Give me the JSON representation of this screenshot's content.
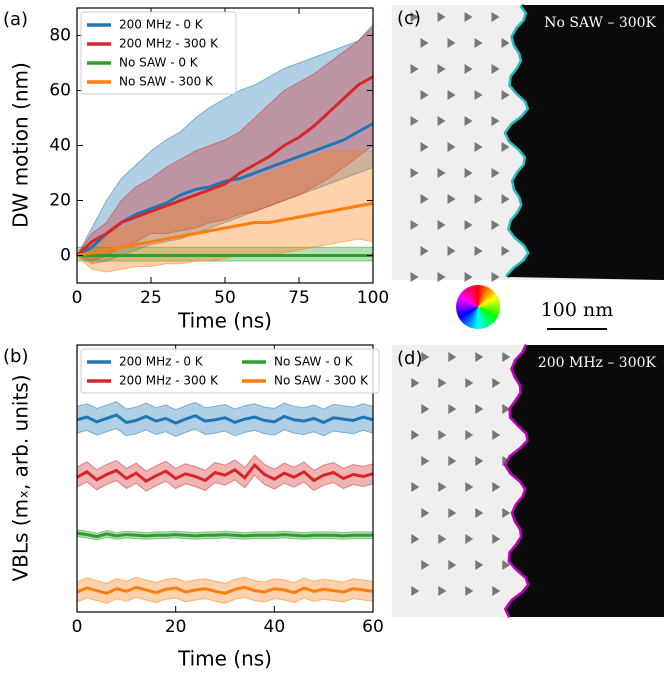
{
  "chart_data": [
    {
      "type": "line",
      "panel_label": "(a)",
      "xlabel": "Time (ns)",
      "ylabel": "DW motion (nm)",
      "x": [
        0,
        5,
        10,
        15,
        20,
        25,
        30,
        35,
        40,
        45,
        50,
        55,
        60,
        65,
        70,
        75,
        80,
        85,
        90,
        95,
        100
      ],
      "xlim": [
        0,
        100
      ],
      "ylim": [
        -10,
        90
      ],
      "xticks": [
        0,
        25,
        50,
        75,
        100
      ],
      "yticks": [
        0,
        20,
        40,
        60,
        80
      ],
      "grid": false,
      "legend": "upper left",
      "legend_columns": 1,
      "series": [
        {
          "name": "200 MHz - 0 K",
          "color": "#1f77b4",
          "values": [
            0,
            3,
            8,
            12,
            15,
            17,
            19,
            22,
            24,
            25,
            27,
            28,
            30,
            32,
            34,
            36,
            38,
            40,
            42,
            45,
            48
          ],
          "lower": [
            0,
            -3,
            -2,
            0,
            2,
            4,
            5,
            6,
            8,
            10,
            12,
            14,
            16,
            18,
            20,
            22,
            24,
            26,
            28,
            30,
            32
          ],
          "upper": [
            0,
            10,
            20,
            28,
            33,
            38,
            42,
            45,
            50,
            54,
            57,
            60,
            62,
            65,
            68,
            70,
            72,
            74,
            76,
            78,
            84
          ]
        },
        {
          "name": "200 MHz - 300 K",
          "color": "#d62728",
          "values": [
            0,
            5,
            8,
            12,
            14,
            16,
            18,
            20,
            22,
            24,
            26,
            30,
            33,
            36,
            40,
            43,
            47,
            52,
            57,
            62,
            65
          ],
          "lower": [
            0,
            -2,
            0,
            3,
            5,
            8,
            8,
            9,
            10,
            12,
            13,
            15,
            16,
            18,
            20,
            22,
            25,
            28,
            32,
            36,
            40
          ],
          "upper": [
            0,
            8,
            12,
            20,
            25,
            28,
            32,
            35,
            38,
            40,
            42,
            45,
            50,
            55,
            60,
            63,
            66,
            70,
            74,
            78,
            83
          ]
        },
        {
          "name": "No SAW - 0 K",
          "color": "#2ca02c",
          "values": [
            0,
            0,
            0,
            0,
            0,
            0,
            0,
            0,
            0,
            0,
            0,
            0,
            0,
            0,
            0,
            0,
            0,
            0,
            0,
            0,
            0
          ],
          "lower": [
            -2,
            -2,
            -2,
            -2,
            -2,
            -2,
            -2,
            -2,
            -2,
            -2,
            -2,
            -2,
            -2,
            -2,
            -2,
            -2,
            -2,
            -2,
            -2,
            -2,
            -2
          ],
          "upper": [
            3,
            3,
            3,
            3,
            3,
            3,
            3,
            3,
            3,
            3,
            3,
            3,
            3,
            3,
            3,
            3,
            3,
            3,
            3,
            3,
            3
          ]
        },
        {
          "name": "No SAW - 300 K",
          "color": "#ff7f0e",
          "values": [
            0,
            1,
            2,
            3,
            4,
            5,
            6,
            7,
            8,
            9,
            10,
            11,
            12,
            12,
            13,
            14,
            15,
            16,
            17,
            18,
            19
          ],
          "lower": [
            0,
            -5,
            -6,
            -5,
            -4,
            -4,
            -3,
            -3,
            -2,
            -2,
            -1,
            0,
            0,
            0,
            1,
            2,
            3,
            4,
            5,
            6,
            5
          ],
          "upper": [
            0,
            5,
            8,
            10,
            12,
            15,
            18,
            20,
            22,
            24,
            25,
            26,
            28,
            30,
            32,
            34,
            36,
            38,
            38,
            38,
            38
          ]
        }
      ]
    },
    {
      "type": "line",
      "panel_label": "(b)",
      "xlabel": "Time (ns)",
      "ylabel": "VBLs (mₓ, arb. units)",
      "x": [
        0,
        2,
        4,
        6,
        8,
        10,
        12,
        14,
        16,
        18,
        20,
        22,
        24,
        26,
        28,
        30,
        32,
        34,
        36,
        38,
        40,
        42,
        44,
        46,
        48,
        50,
        52,
        54,
        56,
        58,
        60
      ],
      "xlim": [
        0,
        60
      ],
      "ylim": [
        0,
        4
      ],
      "xticks": [
        0,
        20,
        40,
        60
      ],
      "yticks": [],
      "grid": false,
      "legend": "upper left",
      "legend_columns": 2,
      "series": [
        {
          "name": "200 MHz - 0 K",
          "color": "#1f77b4",
          "band": 0.2,
          "values": [
            2.88,
            2.92,
            2.85,
            2.9,
            2.95,
            2.84,
            2.87,
            2.93,
            2.86,
            2.9,
            2.83,
            2.89,
            2.94,
            2.86,
            2.88,
            2.91,
            2.84,
            2.89,
            2.92,
            2.87,
            2.85,
            2.93,
            2.88,
            2.86,
            2.9,
            2.84,
            2.91,
            2.89,
            2.87,
            2.92,
            2.88
          ]
        },
        {
          "name": "200 MHz - 300 K",
          "color": "#d62728",
          "band": 0.15,
          "values": [
            2.02,
            2.1,
            1.98,
            2.06,
            2.12,
            2.0,
            2.08,
            1.96,
            2.04,
            2.11,
            2.0,
            2.07,
            2.03,
            1.97,
            2.09,
            2.05,
            2.13,
            2.01,
            2.2,
            2.06,
            1.99,
            2.08,
            2.02,
            2.1,
            1.97,
            2.05,
            2.09,
            2.0,
            2.06,
            2.03,
            2.07
          ]
        },
        {
          "name": "No SAW - 0 K",
          "color": "#2ca02c",
          "band": 0.05,
          "values": [
            1.18,
            1.16,
            1.13,
            1.17,
            1.14,
            1.16,
            1.15,
            1.14,
            1.15,
            1.15,
            1.16,
            1.15,
            1.14,
            1.15,
            1.15,
            1.16,
            1.15,
            1.14,
            1.15,
            1.15,
            1.15,
            1.16,
            1.15,
            1.14,
            1.15,
            1.15,
            1.15,
            1.14,
            1.15,
            1.15,
            1.15
          ]
        },
        {
          "name": "No SAW - 300 K",
          "color": "#ff7f0e",
          "band": 0.15,
          "values": [
            0.3,
            0.36,
            0.32,
            0.28,
            0.35,
            0.31,
            0.37,
            0.33,
            0.29,
            0.34,
            0.36,
            0.3,
            0.33,
            0.35,
            0.31,
            0.28,
            0.34,
            0.37,
            0.32,
            0.3,
            0.35,
            0.33,
            0.29,
            0.36,
            0.31,
            0.34,
            0.32,
            0.3,
            0.35,
            0.33,
            0.31
          ]
        }
      ]
    }
  ],
  "images": [
    {
      "label": "(c)",
      "caption": "No SAW – 300K"
    },
    {
      "label": "(d)",
      "caption": "200 MHz – 300K"
    }
  ],
  "scale_bar": "100 nm"
}
